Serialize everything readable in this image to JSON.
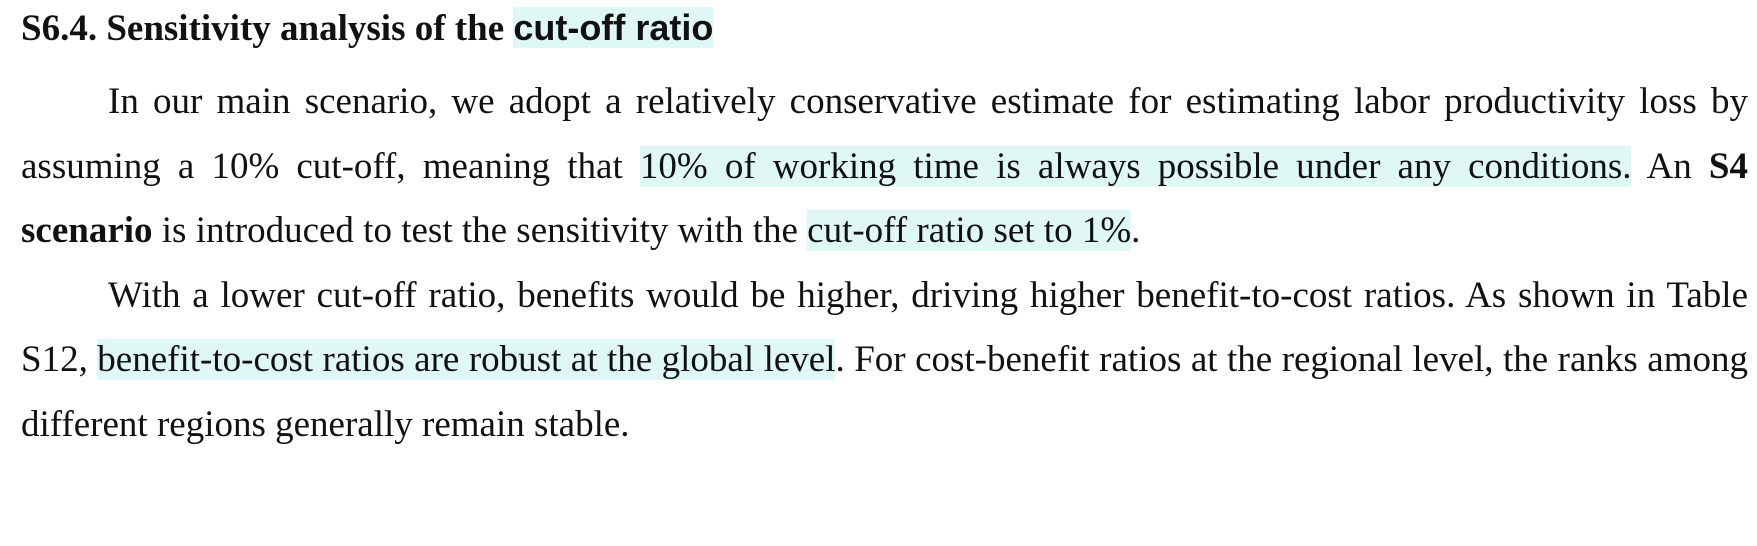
{
  "section": {
    "number_title": "S6.4. Sensitivity analysis of the ",
    "title_highlight": "cut-off ratio"
  },
  "paragraph1": {
    "t1": "In our main scenario, we adopt a relatively conservative estimate for estimating labor productivity loss by assuming a 10% cut-off, meaning that ",
    "h1": "10% of working time is always possible under any conditions.",
    "t2": " An ",
    "b1": "S4 scenario",
    "t3": " is introduced to test the sensitivity with the ",
    "h2": "cut-off ratio set to 1%",
    "t4": "."
  },
  "paragraph2": {
    "t1": "With a lower cut-off ratio, benefits would be higher, driving higher benefit-to-cost ratios. As shown in Table S12, ",
    "h1": "benefit-to-cost ratios are robust at the global level",
    "t2": ". For cost-benefit ratios at the regional level, the ranks among different regions generally remain stable."
  },
  "colors": {
    "highlight": "#dff7f5",
    "text": "#111111"
  }
}
